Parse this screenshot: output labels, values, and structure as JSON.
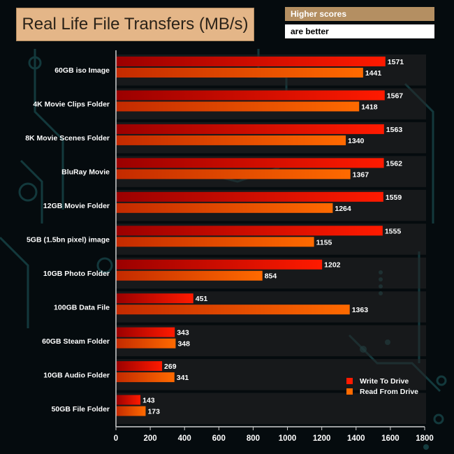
{
  "header": {
    "title": "Real Life File Transfers (MB/s)",
    "note_line1": "Higher scores",
    "note_line2": "are better"
  },
  "colors": {
    "write_light": "#ff1a00",
    "write_dark": "#9b0000",
    "read_light": "#ff6a00",
    "read_dark": "#c42a00",
    "band": "#262626",
    "axis": "#cfcfcf"
  },
  "chart_data": {
    "type": "bar",
    "orientation": "horizontal",
    "title": "Real Life File Transfers (MB/s)",
    "xlabel": "",
    "ylabel": "",
    "xlim": [
      0,
      1800
    ],
    "xticks": [
      0,
      200,
      400,
      600,
      800,
      1000,
      1200,
      1400,
      1600,
      1800
    ],
    "categories": [
      "60GB iso Image",
      "4K Movie Clips Folder",
      "8K Movie Scenes Folder",
      "BluRay Movie",
      "12GB Movie Folder",
      "5GB (1.5bn pixel) image",
      "10GB Photo Folder",
      "100GB Data File",
      "60GB Steam Folder",
      "10GB Audio Folder",
      "50GB File Folder"
    ],
    "series": [
      {
        "name": "Write To  Drive",
        "values": [
          1571,
          1567,
          1563,
          1562,
          1559,
          1555,
          1202,
          451,
          343,
          269,
          143
        ]
      },
      {
        "name": "Read From  Drive",
        "values": [
          1441,
          1418,
          1340,
          1367,
          1264,
          1155,
          854,
          1363,
          348,
          341,
          173
        ]
      }
    ],
    "legend_position": "bottom-right",
    "grid": false
  }
}
